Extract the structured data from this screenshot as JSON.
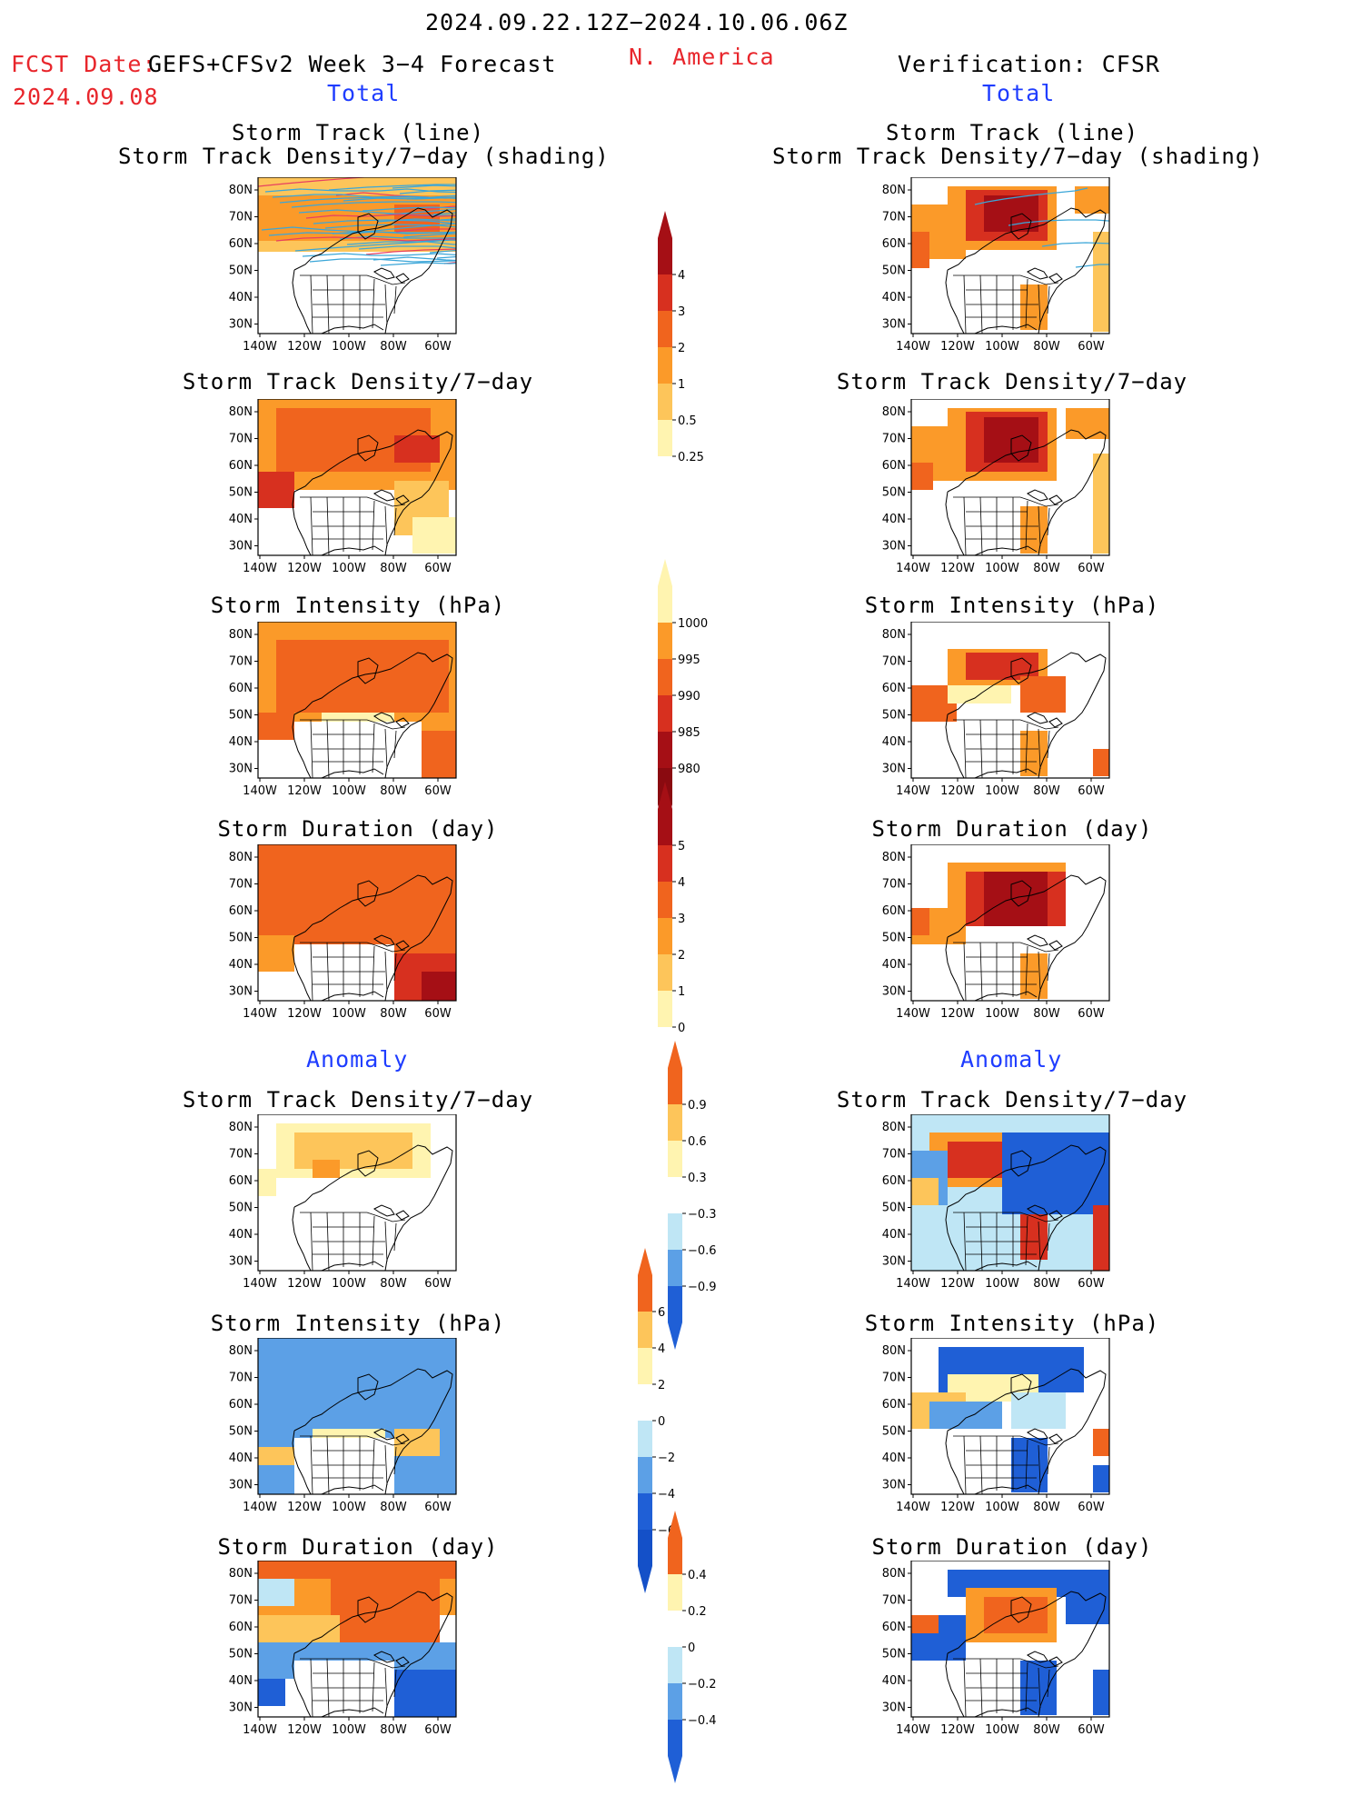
{
  "header": {
    "date_range": "2024.09.22.12Z−2024.10.06.06Z",
    "fcst_prefix": "FCST Date:",
    "model": "GEFS+CFSv2 Week 3−4 Forecast",
    "fcst_date": "2024.09.08",
    "region": "N. America",
    "verification": "Verification: CFSR"
  },
  "sections": {
    "left_total": "Total",
    "right_total": "Total",
    "left_anomaly": "Anomaly",
    "right_anomaly": "Anomaly"
  },
  "panel_titles": {
    "track_line": "Storm Track (line)",
    "track_density_shading": "Storm Track Density/7−day (shading)",
    "density": "Storm Track Density/7−day",
    "intensity": "Storm Intensity (hPa)",
    "duration": "Storm Duration (day)"
  },
  "axes": {
    "lat_labels": [
      "80N",
      "70N",
      "60N",
      "50N",
      "40N",
      "30N"
    ],
    "lon_labels": [
      "140W",
      "120W",
      "100W",
      "80W",
      "60W"
    ]
  },
  "colorbars": {
    "density_total": [
      "4",
      "3",
      "2",
      "1",
      "0.5",
      "0.25"
    ],
    "intensity_total": [
      "1000",
      "995",
      "990",
      "985",
      "980"
    ],
    "duration_total": [
      "5",
      "4",
      "3",
      "2",
      "1",
      "0"
    ],
    "density_anom": [
      "0.9",
      "0.6",
      "0.3",
      "−0.3",
      "−0.6",
      "−0.9"
    ],
    "intensity_anom": [
      "6",
      "4",
      "2",
      "0",
      "−2",
      "−4",
      "−6"
    ],
    "duration_anom": [
      "0.4",
      "0.2",
      "0",
      "−0.2",
      "−0.4"
    ]
  },
  "colors": {
    "dark_red": "#a50f15",
    "red": "#d7301f",
    "orange_red": "#f0641e",
    "orange": "#fb9a29",
    "light_orange": "#fdc55a",
    "pale_yellow": "#fff4b0",
    "light_blue": "#bfe6f5",
    "blue": "#5ca0e6",
    "dark_blue": "#1f5fd6",
    "track_blue": "#3ba6d8",
    "track_red": "#e84060"
  }
}
